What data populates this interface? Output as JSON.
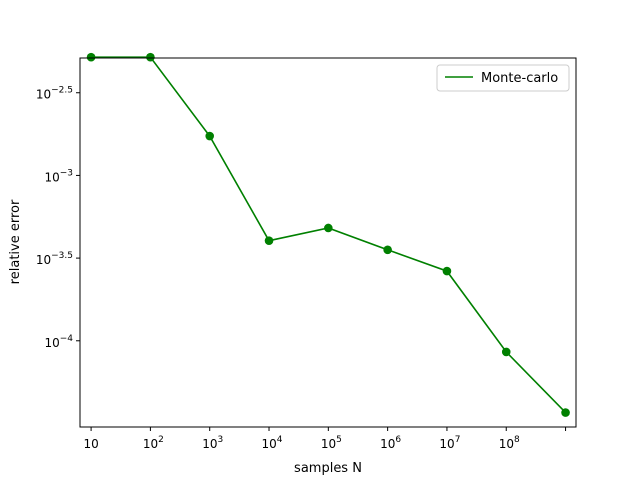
{
  "chart_data": {
    "type": "line",
    "title": "",
    "xlabel": "samples N",
    "ylabel": "relative error",
    "x_scale": "log",
    "y_scale": "log",
    "x_ticks": [
      {
        "value": 10,
        "base": "10",
        "exp": ""
      },
      {
        "value": 100,
        "base": "10",
        "exp": "2"
      },
      {
        "value": 1000,
        "base": "10",
        "exp": "3"
      },
      {
        "value": 10000,
        "base": "10",
        "exp": "4"
      },
      {
        "value": 100000,
        "base": "10",
        "exp": "5"
      },
      {
        "value": 1000000,
        "base": "10",
        "exp": "6"
      },
      {
        "value": 10000000,
        "base": "10",
        "exp": "7"
      },
      {
        "value": 100000000,
        "base": "10",
        "exp": "8"
      },
      {
        "value": 1000000000,
        "base": "",
        "exp": ""
      }
    ],
    "y_ticks": [
      {
        "value": 0.00316228,
        "base": "10",
        "exp": "−2.5"
      },
      {
        "value": 0.001,
        "base": "10",
        "exp": "−3"
      },
      {
        "value": 0.000316228,
        "base": "10",
        "exp": "−3.5"
      },
      {
        "value": 0.0001,
        "base": "10",
        "exp": "−4"
      }
    ],
    "xlim": [
      6.5,
      1500000000.0
    ],
    "ylim": [
      3.01e-05,
      0.00513
    ],
    "grid": false,
    "legend_position": "upper right",
    "series": [
      {
        "name": "Monte-carlo",
        "color": "#008000",
        "marker": "circle",
        "x": [
          10,
          100,
          1000,
          10000,
          100000,
          1000000,
          10000000,
          100000000,
          1000000000
        ],
        "y": [
          0.00519,
          0.00519,
          0.00173,
          0.000403,
          0.000481,
          0.000355,
          0.000264,
          8.56e-05,
          3.68e-05
        ]
      }
    ]
  }
}
